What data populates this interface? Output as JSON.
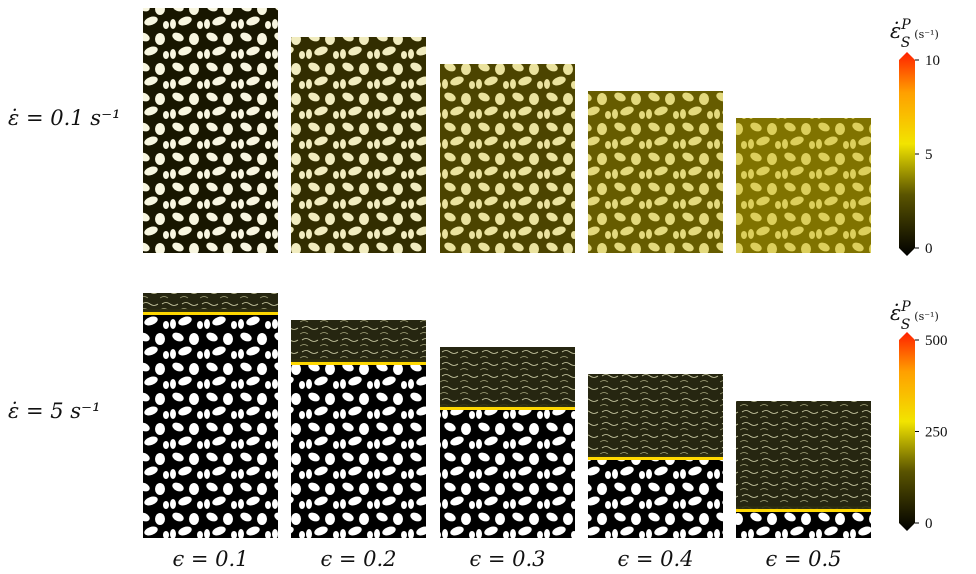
{
  "row_labels": [
    "ε̇ = 0.1 s⁻¹",
    "ε̇ = 5 s⁻¹"
  ],
  "column_labels": [
    "ϵ = 0.1",
    "ϵ = 0.2",
    "ϵ = 0.3",
    "ϵ = 0.4",
    "ϵ = 0.5"
  ],
  "colorbars": [
    {
      "symbol": "ε̇",
      "subscript": "S",
      "superscript": "P",
      "unit": "(s⁻¹)",
      "ticks": [
        "10",
        "5",
        "0"
      ]
    },
    {
      "symbol": "ε̇",
      "subscript": "S",
      "superscript": "P",
      "unit": "(s⁻¹)",
      "ticks": [
        "500",
        "250",
        "0"
      ]
    }
  ]
}
